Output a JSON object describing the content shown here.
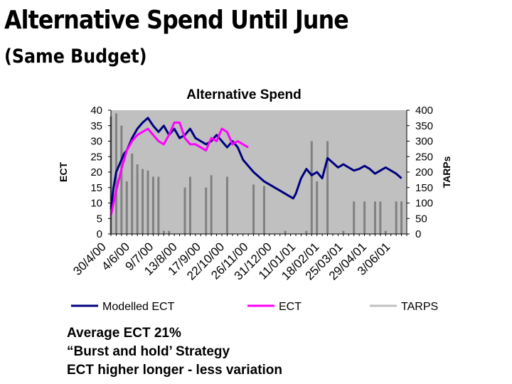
{
  "slide": {
    "title": "Alternative Spend Until June",
    "subtitle": "(Same Budget)",
    "bullets": [
      "Average ECT 21%",
      "“Burst and hold’ Strategy",
      "ECT higher longer - less variation"
    ]
  },
  "chart_data": {
    "type": "line",
    "title": "Alternative Spend",
    "ylabel": "ECT",
    "y2label": "TARPs",
    "ylim": [
      0,
      40
    ],
    "y2lim": [
      0,
      400
    ],
    "yticks": [
      0,
      5,
      10,
      15,
      20,
      25,
      30,
      35,
      40
    ],
    "y2ticks": [
      0,
      50,
      100,
      150,
      200,
      250,
      300,
      350,
      400
    ],
    "x_tick_labels": [
      "30/4/00",
      "4/6/00",
      "9/7/00",
      "13/8/00",
      "17/9/00",
      "22/10/00",
      "26/11/00",
      "31/12/00",
      "11/01/01",
      "18/02/01",
      "25/03/01",
      "29/04/01",
      "3/06/01"
    ],
    "x_range": [
      0,
      56
    ],
    "grid": false,
    "legend_position": "bottom",
    "plot_background": "#c0c0c0",
    "series": [
      {
        "name": "Modelled ECT",
        "axis": "left",
        "color": "#000080",
        "x": [
          0,
          0.5,
          1,
          1.5,
          2,
          2.5,
          3,
          3.5,
          4,
          5,
          6,
          7,
          8,
          9,
          10,
          11,
          12,
          13,
          14,
          15,
          16,
          17,
          18,
          19,
          20,
          21,
          22,
          23,
          24,
          25,
          26,
          27,
          28,
          29,
          30,
          31,
          32,
          33,
          34,
          34.5,
          35,
          36,
          37,
          38,
          39,
          40,
          41,
          42,
          43,
          44,
          45,
          46,
          47,
          48,
          49,
          50,
          51,
          52,
          53,
          54,
          55
        ],
        "y": [
          8,
          15,
          20,
          22,
          24,
          26,
          27,
          29,
          31,
          34,
          36,
          37.5,
          35,
          33,
          35,
          32,
          34,
          31,
          32,
          34,
          31,
          30,
          29,
          30,
          32,
          30,
          28,
          30,
          28,
          24,
          22,
          20,
          18.5,
          17,
          16,
          15,
          14,
          13,
          12,
          11.5,
          13,
          18,
          21,
          19,
          20,
          18,
          24.5,
          23,
          21.5,
          22.5,
          21.5,
          20.5,
          21,
          22,
          21,
          19.5,
          20.5,
          21.5,
          20.5,
          19.5,
          18
        ]
      },
      {
        "name": "ECT",
        "axis": "left",
        "color": "#ff00ff",
        "x": [
          0,
          1,
          2,
          3,
          4,
          5,
          6,
          7,
          8,
          9,
          10,
          11,
          12,
          13,
          14,
          15,
          16,
          17,
          18,
          19,
          20,
          21,
          22,
          23,
          24,
          25,
          26
        ],
        "y": [
          6,
          14,
          21,
          27,
          30,
          32,
          33,
          34,
          32,
          30,
          29,
          32,
          36,
          36,
          31,
          29,
          29,
          28,
          27,
          31,
          30,
          34,
          33,
          29,
          30,
          29,
          28
        ]
      },
      {
        "name": "TARPS",
        "axis": "right",
        "type": "bar",
        "color": "#808080",
        "x": [
          0,
          1,
          2,
          3,
          4,
          5,
          6,
          7,
          8,
          9,
          10,
          11,
          14,
          15,
          18,
          19,
          22,
          27,
          29,
          33,
          37,
          38,
          39,
          41,
          44,
          46,
          48,
          50,
          51,
          52,
          54,
          55
        ],
        "y": [
          380,
          390,
          350,
          170,
          260,
          225,
          210,
          205,
          185,
          185,
          10,
          10,
          150,
          185,
          150,
          190,
          185,
          160,
          155,
          10,
          10,
          300,
          170,
          300,
          10,
          105,
          105,
          105,
          105,
          10,
          105,
          105
        ]
      }
    ]
  }
}
